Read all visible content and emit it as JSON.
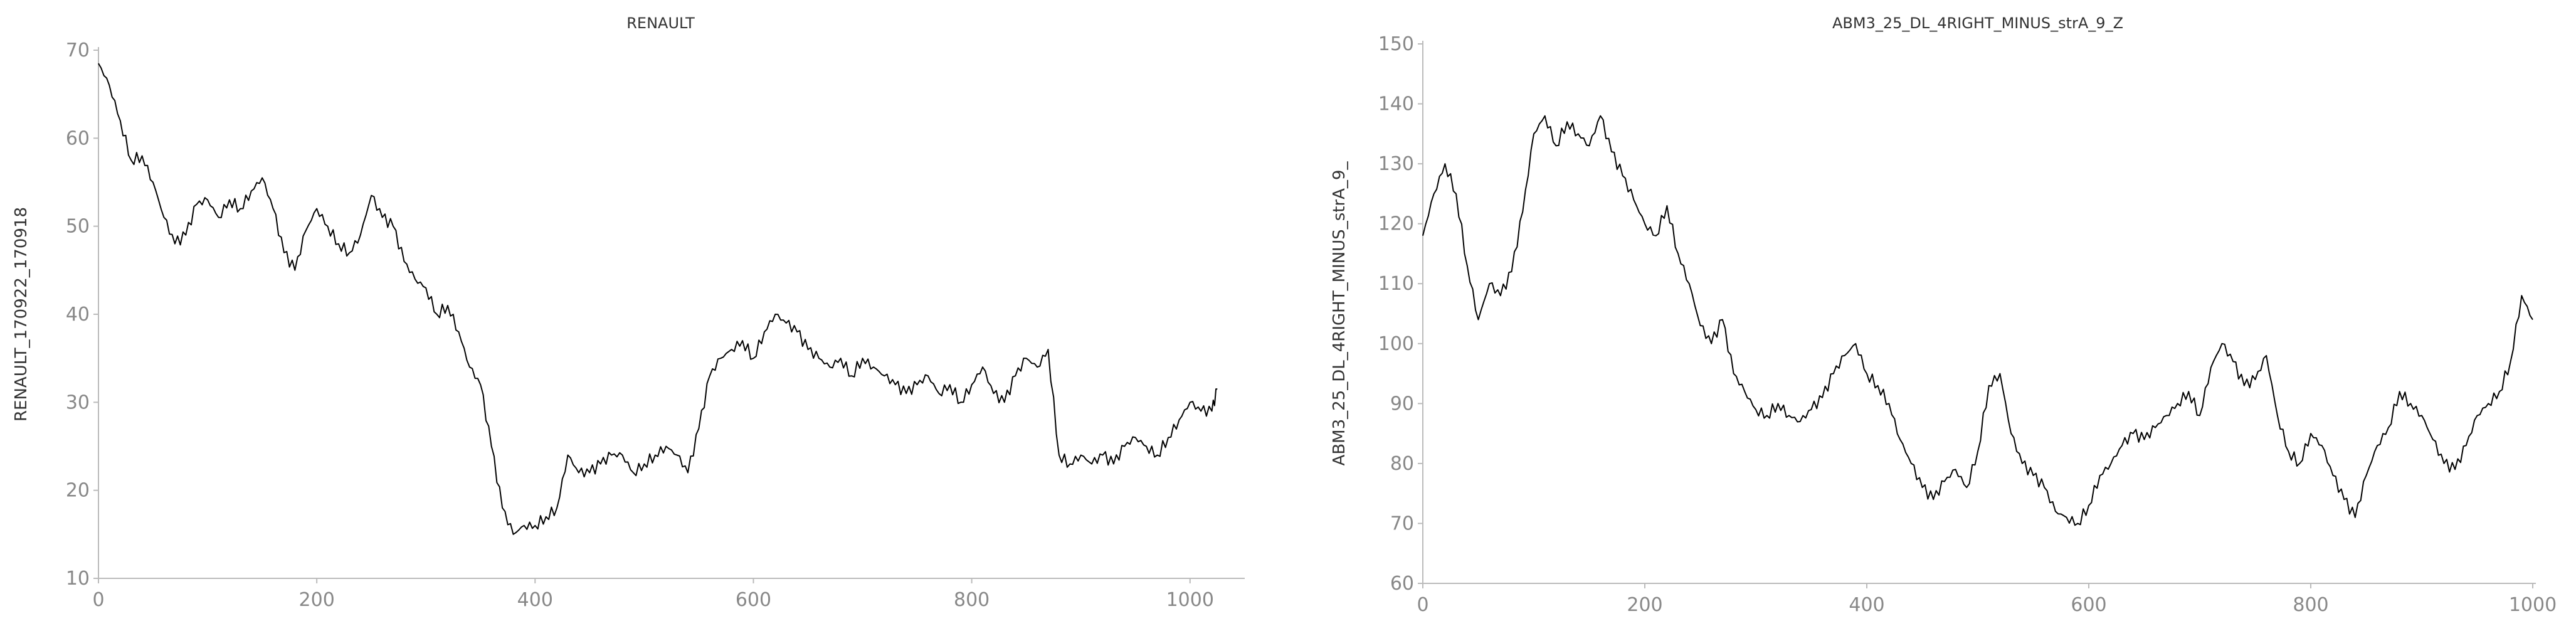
{
  "chart_data": [
    {
      "type": "line",
      "title": "RENAULT",
      "xlabel": "",
      "ylabel": "RENAULT_170922_170918",
      "xlim": [
        0,
        1030
      ],
      "ylim": [
        10,
        70
      ],
      "xticks": [
        0,
        200,
        400,
        600,
        800,
        1000
      ],
      "yticks": [
        10,
        20,
        30,
        40,
        50,
        60,
        70
      ],
      "grid": false,
      "series": [
        {
          "color": "#000000",
          "x": [
            0,
            10,
            20,
            30,
            40,
            50,
            60,
            70,
            80,
            90,
            100,
            110,
            120,
            130,
            140,
            150,
            160,
            170,
            180,
            190,
            200,
            210,
            220,
            230,
            240,
            250,
            260,
            270,
            280,
            290,
            300,
            310,
            320,
            330,
            340,
            350,
            360,
            370,
            380,
            390,
            400,
            410,
            420,
            430,
            440,
            450,
            460,
            470,
            480,
            490,
            500,
            510,
            520,
            530,
            540,
            550,
            560,
            570,
            580,
            590,
            600,
            610,
            620,
            630,
            640,
            650,
            660,
            670,
            680,
            690,
            700,
            710,
            720,
            730,
            740,
            750,
            760,
            770,
            780,
            790,
            800,
            810,
            820,
            830,
            840,
            850,
            860,
            870,
            880,
            890,
            900,
            910,
            920,
            930,
            940,
            950,
            960,
            970,
            980,
            990,
            1000,
            1010,
            1020,
            1025
          ],
          "y": [
            68.5,
            66,
            62,
            57.5,
            58,
            55,
            51,
            48,
            49,
            52.5,
            53,
            51,
            53,
            52,
            54,
            55.5,
            52,
            47,
            45,
            49.5,
            52,
            50,
            48,
            47,
            49,
            53.5,
            51,
            50,
            46,
            44,
            43,
            40,
            41,
            38,
            34,
            32,
            25,
            18,
            15,
            16,
            16,
            17,
            18,
            24,
            22,
            22,
            23,
            24,
            24,
            22,
            23,
            24,
            25,
            24,
            22,
            27,
            33,
            35,
            36,
            37,
            35,
            38,
            40,
            39,
            38,
            36,
            35,
            34,
            35,
            33,
            35,
            34,
            33,
            32,
            31,
            32,
            33,
            31,
            32,
            30,
            32,
            34,
            31,
            30,
            33,
            35,
            34,
            36,
            24,
            23,
            24,
            23,
            24,
            23,
            25,
            26,
            25,
            24,
            26,
            28,
            30,
            29,
            29,
            31.5
          ]
        }
      ]
    },
    {
      "type": "line",
      "title": "ABM3_25_DL_4RIGHT_MINUS_strA_9_Z",
      "xlabel": "",
      "ylabel": "ABM3_25_DL_4RIGHT_MINUS_strA_9_",
      "xlim": [
        0,
        1000
      ],
      "ylim": [
        60,
        150
      ],
      "xticks": [
        0,
        200,
        400,
        600,
        800,
        1000
      ],
      "yticks": [
        60,
        70,
        80,
        90,
        100,
        110,
        120,
        130,
        140,
        150
      ],
      "grid": false,
      "series": [
        {
          "color": "#000000",
          "x": [
            0,
            10,
            20,
            30,
            40,
            50,
            60,
            70,
            80,
            90,
            100,
            110,
            120,
            130,
            140,
            150,
            160,
            170,
            180,
            190,
            200,
            210,
            220,
            230,
            240,
            250,
            260,
            270,
            280,
            290,
            300,
            310,
            320,
            330,
            340,
            350,
            360,
            370,
            380,
            390,
            400,
            410,
            420,
            430,
            440,
            450,
            460,
            470,
            480,
            490,
            500,
            510,
            520,
            530,
            540,
            550,
            560,
            570,
            580,
            590,
            600,
            610,
            620,
            630,
            640,
            650,
            660,
            670,
            680,
            690,
            700,
            710,
            720,
            730,
            740,
            750,
            760,
            770,
            780,
            790,
            800,
            810,
            820,
            830,
            840,
            850,
            860,
            870,
            880,
            890,
            900,
            910,
            920,
            930,
            940,
            950,
            960,
            970,
            980,
            990,
            1000
          ],
          "y": [
            118,
            125,
            130,
            125,
            113,
            104,
            110,
            108,
            112,
            122,
            135,
            138,
            133,
            137,
            135,
            133,
            138,
            132,
            128,
            124,
            120,
            118,
            123,
            115,
            110,
            103,
            100,
            104,
            95,
            92,
            89,
            88,
            90,
            88,
            87,
            89,
            91,
            95,
            98,
            100,
            95,
            93,
            90,
            84,
            80,
            76,
            74,
            77,
            79,
            76,
            82,
            93,
            95,
            85,
            80,
            78,
            76,
            72,
            71,
            70,
            73,
            78,
            80,
            83,
            85,
            84,
            86,
            88,
            90,
            92,
            88,
            96,
            100,
            97,
            93,
            94,
            98,
            88,
            82,
            80,
            85,
            83,
            78,
            74,
            71,
            78,
            83,
            86,
            92,
            90,
            88,
            84,
            80,
            79,
            83,
            88,
            90,
            92,
            97,
            108,
            104
          ]
        }
      ]
    }
  ]
}
